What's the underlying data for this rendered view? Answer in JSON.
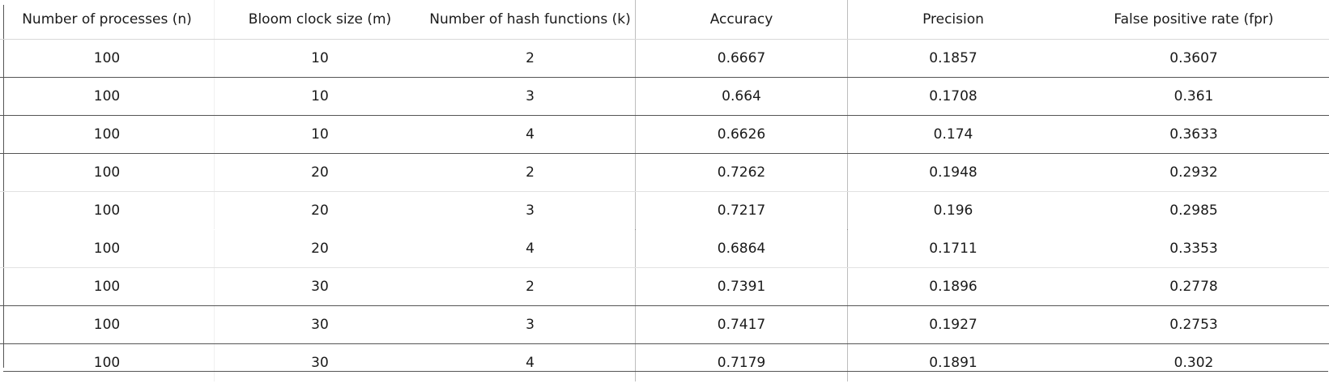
{
  "table": {
    "headers": [
      "Number of processes (n)",
      "Bloom clock size (m)",
      "Number of hash functions (k)",
      "Accuracy",
      "Precision",
      "False positive rate (fpr)"
    ],
    "rows": [
      [
        "100",
        "10",
        "2",
        "0.6667",
        "0.1857",
        "0.3607"
      ],
      [
        "100",
        "10",
        "3",
        "0.664",
        "0.1708",
        "0.361"
      ],
      [
        "100",
        "10",
        "4",
        "0.6626",
        "0.174",
        "0.3633"
      ],
      [
        "100",
        "20",
        "2",
        "0.7262",
        "0.1948",
        "0.2932"
      ],
      [
        "100",
        "20",
        "3",
        "0.7217",
        "0.196",
        "0.2985"
      ],
      [
        "100",
        "20",
        "4",
        "0.6864",
        "0.1711",
        "0.3353"
      ],
      [
        "100",
        "30",
        "2",
        "0.7391",
        "0.1896",
        "0.2778"
      ],
      [
        "100",
        "30",
        "3",
        "0.7417",
        "0.1927",
        "0.2753"
      ],
      [
        "100",
        "30",
        "4",
        "0.7179",
        "0.1891",
        "0.302"
      ]
    ]
  }
}
